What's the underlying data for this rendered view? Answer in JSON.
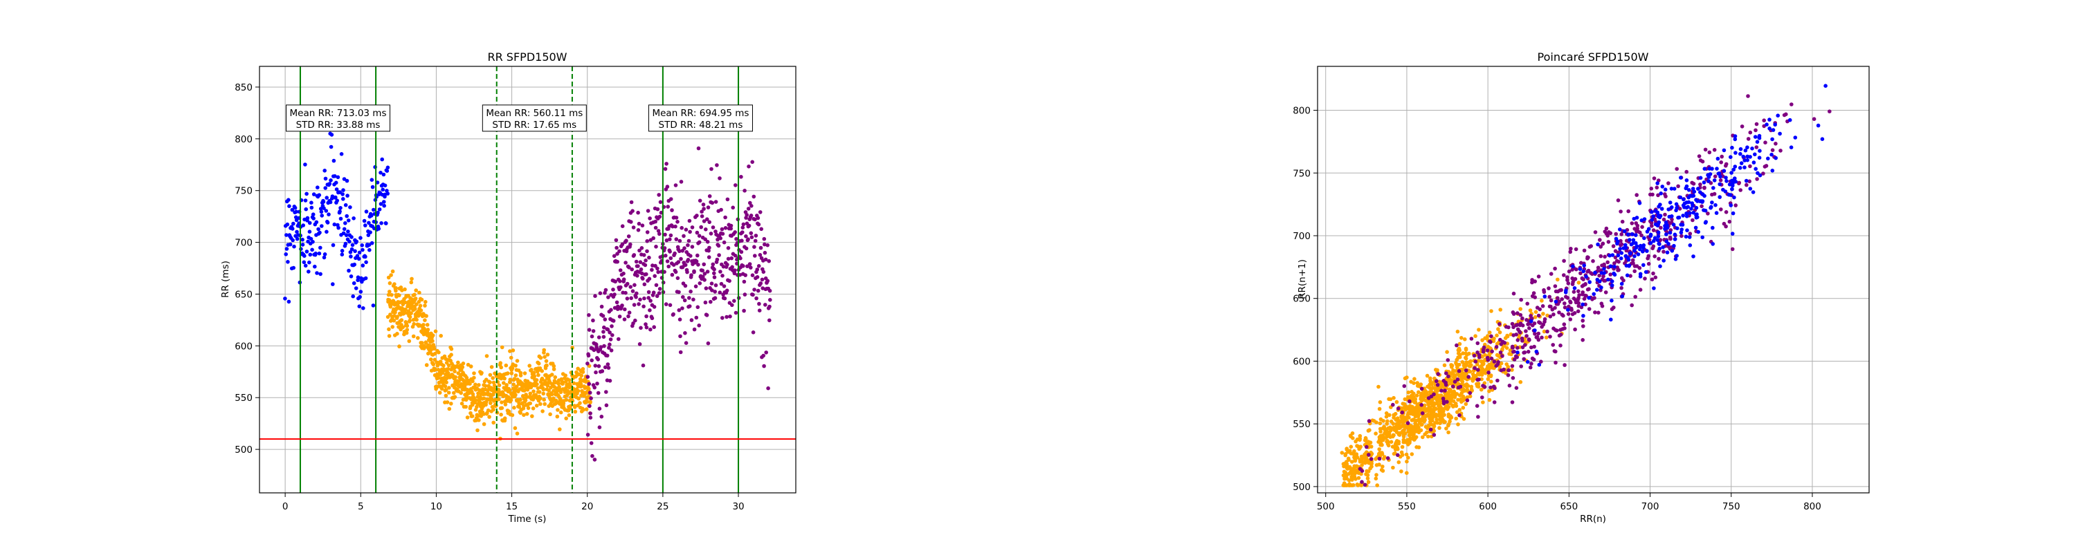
{
  "colors": {
    "baseline": "#0000ff",
    "effort": "#ffa500",
    "recovery": "#800080",
    "phase_line": "#008000",
    "threshold_line": "#ff0000",
    "grid": "#b0b0b0"
  },
  "chart_data": [
    {
      "type": "scatter",
      "title": "RR SFPD150W",
      "xlabel": "Time (s)",
      "ylabel": "RR (ms)",
      "xlim": [
        -1.7,
        33.8
      ],
      "ylim": [
        458,
        870
      ],
      "xticks": [
        0,
        5,
        10,
        15,
        20,
        25,
        30
      ],
      "yticks": [
        500,
        550,
        600,
        650,
        700,
        750,
        800,
        850
      ],
      "grid": true,
      "solid_vlines_x": [
        1,
        6,
        25,
        30
      ],
      "dashed_vlines_x": [
        14,
        19
      ],
      "threshold_y": 510,
      "annotations": [
        {
          "x": 3.5,
          "y": 820,
          "lines": [
            "Mean RR: 713.03 ms",
            "STD RR: 33.88 ms"
          ]
        },
        {
          "x": 16.5,
          "y": 820,
          "lines": [
            "Mean RR: 560.11 ms",
            "STD RR: 17.65 ms"
          ]
        },
        {
          "x": 27.5,
          "y": 820,
          "lines": [
            "Mean RR: 694.95 ms",
            "STD RR: 48.21 ms"
          ]
        }
      ],
      "series": [
        {
          "key": "baseline",
          "segments": [
            {
              "x": [
                0,
                1,
                2,
                3,
                4,
                5,
                6,
                6.8
              ],
              "y": [
                708,
                700,
                722,
                746,
                718,
                680,
                735,
                752
              ],
              "spread": 30,
              "n": 280
            }
          ]
        },
        {
          "key": "effort",
          "segments": [
            {
              "x": [
                6.8,
                7.5,
                8.5,
                10,
                12,
                14,
                16,
                18,
                19.5,
                20.2
              ],
              "y": [
                640,
                640,
                635,
                585,
                555,
                553,
                560,
                558,
                555,
                548
              ],
              "spread": 17,
              "n": 1000
            }
          ]
        },
        {
          "key": "recovery",
          "segments": [
            {
              "x": [
                20,
                20.5,
                21.5,
                23,
                25,
                27,
                29,
                31,
                32.1
              ],
              "y": [
                535,
                590,
                640,
                672,
                690,
                688,
                690,
                685,
                650
              ],
              "spread": 42,
              "n": 620
            }
          ]
        }
      ]
    },
    {
      "type": "scatter",
      "title": "Poincaré SFPD150W",
      "xlabel": "RR(n)",
      "ylabel": "RR(n+1)",
      "xlim": [
        495,
        835
      ],
      "ylim": [
        495,
        835
      ],
      "xticks": [
        500,
        550,
        600,
        650,
        700,
        750,
        800
      ],
      "yticks": [
        500,
        550,
        600,
        650,
        700,
        750,
        800
      ],
      "grid": true,
      "series": [
        {
          "key": "effort",
          "range": [
            510,
            700
          ],
          "center": 565,
          "sd": 28,
          "spread": 13,
          "n": 1100
        },
        {
          "key": "recovery",
          "range": [
            520,
            820
          ],
          "center": 660,
          "sd": 55,
          "spread": 18,
          "n": 620
        },
        {
          "key": "baseline",
          "range": [
            600,
            815
          ],
          "center": 715,
          "sd": 35,
          "spread": 14,
          "n": 320
        }
      ]
    }
  ]
}
